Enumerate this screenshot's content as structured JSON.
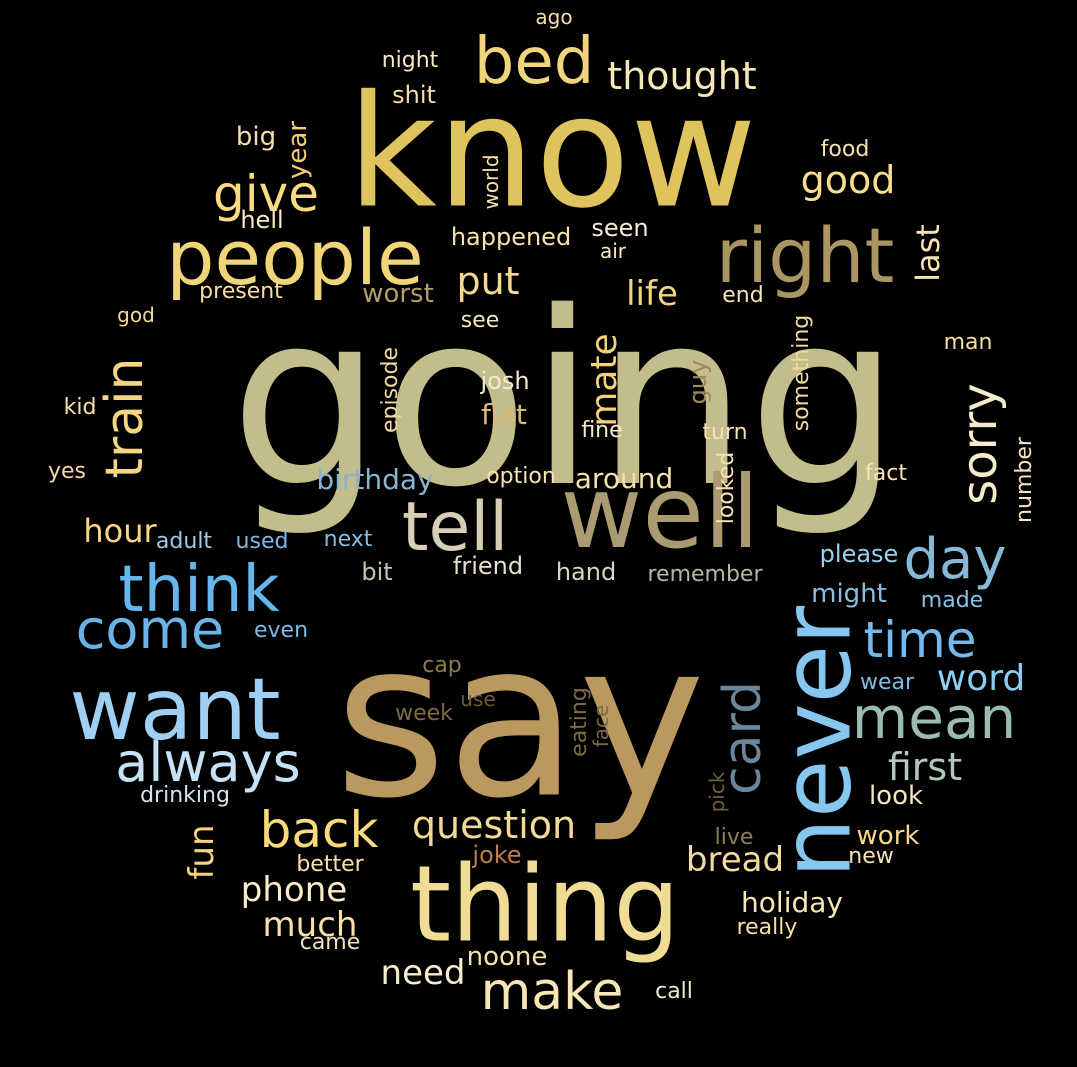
{
  "words": [
    {
      "text": "going",
      "color": "#c3bd8c"
    },
    {
      "text": "say",
      "color": "#bb995e"
    },
    {
      "text": "know",
      "color": "#dfc35c"
    },
    {
      "text": "thing",
      "color": "#f0dc94"
    },
    {
      "text": "want",
      "color": "#9fd0f3"
    },
    {
      "text": "well",
      "color": "#ab9b70"
    },
    {
      "text": "never",
      "color": "#87c6ee"
    },
    {
      "text": "people",
      "color": "#f0d579"
    },
    {
      "text": "right",
      "color": "#a99662"
    },
    {
      "text": "tell",
      "color": "#d8ceb5"
    },
    {
      "text": "think",
      "color": "#66b5eb"
    },
    {
      "text": "bed",
      "color": "#f1d57d"
    },
    {
      "text": "day",
      "color": "#85b9d5"
    },
    {
      "text": "mean",
      "color": "#9dbcb1"
    },
    {
      "text": "come",
      "color": "#6ab4e8"
    },
    {
      "text": "always",
      "color": "#c5e1f3"
    },
    {
      "text": "back",
      "color": "#f8d97b"
    },
    {
      "text": "make",
      "color": "#f7e6b6"
    },
    {
      "text": "give",
      "color": "#f9db82"
    },
    {
      "text": "train",
      "color": "#f5d581"
    },
    {
      "text": "time",
      "color": "#73b8ee"
    },
    {
      "text": "card",
      "color": "#6b859a"
    },
    {
      "text": "sorry",
      "color": "#f6eccc"
    },
    {
      "text": "question",
      "color": "#f2d998"
    },
    {
      "text": "thought",
      "color": "#f6e6b9"
    },
    {
      "text": "good",
      "color": "#f8dd8c"
    },
    {
      "text": "first",
      "color": "#b0c9b8"
    },
    {
      "text": "put",
      "color": "#f4d98f"
    },
    {
      "text": "life",
      "color": "#f4d57d"
    },
    {
      "text": "mate",
      "color": "#f2d178"
    },
    {
      "text": "word",
      "color": "#8dcdf1"
    },
    {
      "text": "bread",
      "color": "#f4d9a0"
    },
    {
      "text": "phone",
      "color": "#faedcc"
    },
    {
      "text": "much",
      "color": "#f7e0a9"
    },
    {
      "text": "need",
      "color": "#f8edce"
    },
    {
      "text": "hour",
      "color": "#f9d586"
    },
    {
      "text": "fun",
      "color": "#f4d47e"
    },
    {
      "text": "last",
      "color": "#f6e5b4"
    },
    {
      "text": "birthday",
      "color": "#8ab3cf"
    },
    {
      "text": "around",
      "color": "#f5e0a6"
    },
    {
      "text": "worst",
      "color": "#b49d66"
    },
    {
      "text": "flat",
      "color": "#d9b973"
    },
    {
      "text": "holiday",
      "color": "#f9e6b5"
    },
    {
      "text": "look",
      "color": "#f2e5c2"
    },
    {
      "text": "work",
      "color": "#f8d88b"
    },
    {
      "text": "might",
      "color": "#8bbede"
    },
    {
      "text": "please",
      "color": "#9ad0ef"
    },
    {
      "text": "happened",
      "color": "#f5e3ae"
    },
    {
      "text": "shit",
      "color": "#f4ddb0"
    },
    {
      "text": "night",
      "color": "#f7e7c2"
    },
    {
      "text": "big",
      "color": "#f6dfa7"
    },
    {
      "text": "year",
      "color": "#f0cd76"
    },
    {
      "text": "hell",
      "color": "#f8e9c5"
    },
    {
      "text": "food",
      "color": "#f7e2ae"
    },
    {
      "text": "seen",
      "color": "#f6ecd7"
    },
    {
      "text": "air",
      "color": "#f9ebc5"
    },
    {
      "text": "world",
      "color": "#f7e1a9"
    },
    {
      "text": "present",
      "color": "#f7dea3"
    },
    {
      "text": "end",
      "color": "#f6e2b4"
    },
    {
      "text": "god",
      "color": "#f4d99a"
    },
    {
      "text": "see",
      "color": "#f6e7c4"
    },
    {
      "text": "something",
      "color": "#f2d9a0"
    },
    {
      "text": "man",
      "color": "#f7e0a6"
    },
    {
      "text": "kid",
      "color": "#f7e1ab"
    },
    {
      "text": "episode",
      "color": "#f1d8a0"
    },
    {
      "text": "josh",
      "color": "#f4e9d0"
    },
    {
      "text": "guy",
      "color": "#a18756"
    },
    {
      "text": "fine",
      "color": "#f7eac7"
    },
    {
      "text": "turn",
      "color": "#f5e2b2"
    },
    {
      "text": "yes",
      "color": "#f5d9a4"
    },
    {
      "text": "option",
      "color": "#f6e3b4"
    },
    {
      "text": "looked",
      "color": "#f7e3b6"
    },
    {
      "text": "fact",
      "color": "#f8e4b4"
    },
    {
      "text": "number",
      "color": "#f5e5c0"
    },
    {
      "text": "adult",
      "color": "#9ec8e4"
    },
    {
      "text": "used",
      "color": "#7fb8e6"
    },
    {
      "text": "next",
      "color": "#84bde5"
    },
    {
      "text": "bit",
      "color": "#c8c1af"
    },
    {
      "text": "friend",
      "color": "#e6dfcc"
    },
    {
      "text": "hand",
      "color": "#dcd5c2"
    },
    {
      "text": "remember",
      "color": "#b9b5a6"
    },
    {
      "text": "made",
      "color": "#89c2e8"
    },
    {
      "text": "even",
      "color": "#7cbae6"
    },
    {
      "text": "cap",
      "color": "#8f7a4e"
    },
    {
      "text": "use",
      "color": "#6f5c3a"
    },
    {
      "text": "week",
      "color": "#7e6a43"
    },
    {
      "text": "eating",
      "color": "#7d6845"
    },
    {
      "text": "face",
      "color": "#7c6845"
    },
    {
      "text": "wear",
      "color": "#80bce5"
    },
    {
      "text": "drinking",
      "color": "#cfe4f1"
    },
    {
      "text": "pick",
      "color": "#6d5c3e"
    },
    {
      "text": "live",
      "color": "#8c7d5d"
    },
    {
      "text": "joke",
      "color": "#b97e4b"
    },
    {
      "text": "new",
      "color": "#f6e4bb"
    },
    {
      "text": "better",
      "color": "#f8e0a9"
    },
    {
      "text": "came",
      "color": "#f3e1bd"
    },
    {
      "text": "noone",
      "color": "#f6e1ac"
    },
    {
      "text": "really",
      "color": "#f7dfa6"
    },
    {
      "text": "call",
      "color": "#f2e7cf"
    },
    {
      "text": "ago",
      "color": "#f6dfa8"
    }
  ]
}
